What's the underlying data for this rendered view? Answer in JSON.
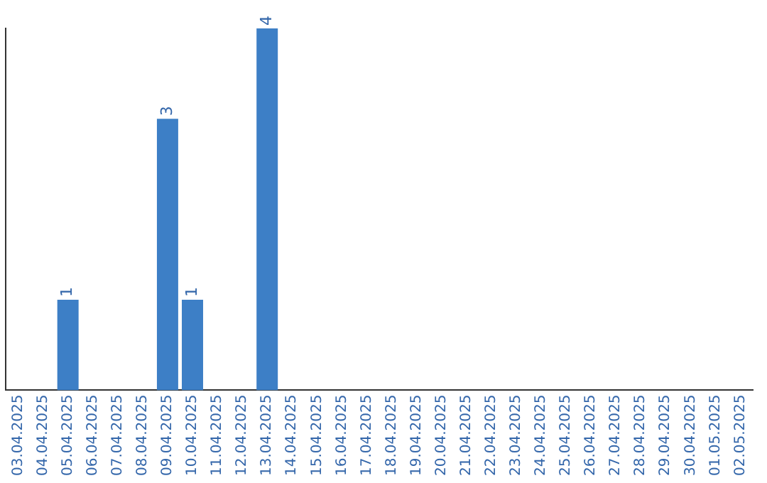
{
  "chart_data": {
    "type": "bar",
    "categories": [
      "03.04.2025",
      "04.04.2025",
      "05.04.2025",
      "06.04.2025",
      "07.04.2025",
      "08.04.2025",
      "09.04.2025",
      "10.04.2025",
      "11.04.2025",
      "12.04.2025",
      "13.04.2025",
      "14.04.2025",
      "15.04.2025",
      "16.04.2025",
      "17.04.2025",
      "18.04.2025",
      "19.04.2025",
      "20.04.2025",
      "21.04.2025",
      "22.04.2025",
      "23.04.2025",
      "24.04.2025",
      "25.04.2025",
      "26.04.2025",
      "27.04.2025",
      "28.04.2025",
      "29.04.2025",
      "30.04.2025",
      "01.05.2025",
      "02.05.2025"
    ],
    "values": [
      0,
      0,
      1,
      0,
      0,
      0,
      3,
      1,
      0,
      0,
      4,
      0,
      0,
      0,
      0,
      0,
      0,
      0,
      0,
      0,
      0,
      0,
      0,
      0,
      0,
      0,
      0,
      0,
      0,
      0
    ],
    "value_labels": [
      null,
      null,
      "1",
      null,
      null,
      null,
      "3",
      "1",
      null,
      null,
      "4",
      null,
      null,
      null,
      null,
      null,
      null,
      null,
      null,
      null,
      null,
      null,
      null,
      null,
      null,
      null,
      null,
      null,
      null,
      null
    ],
    "color": "#3d7fc6",
    "tick_labels": "x",
    "grid": false,
    "legend": false
  }
}
